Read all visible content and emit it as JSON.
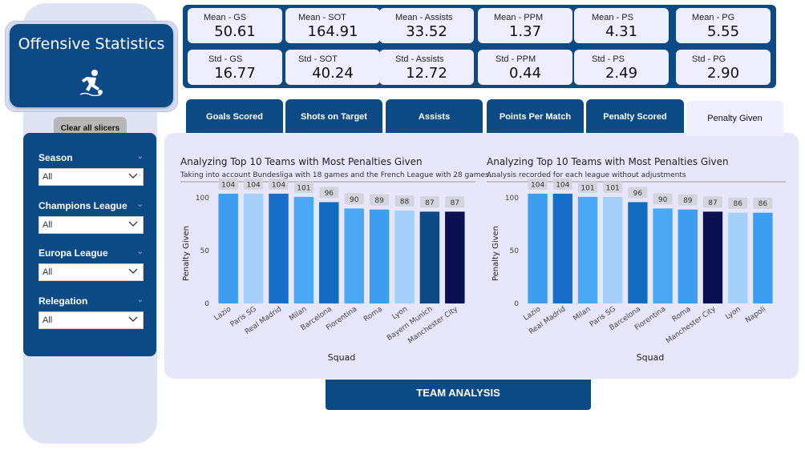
{
  "app": {
    "title": "Offensive Statistics",
    "clear_label": "Clear all slicers",
    "team_analysis_label": "TEAM ANALYSIS"
  },
  "slicers": [
    {
      "label": "Season",
      "value": "All"
    },
    {
      "label": "Champions League",
      "value": "All"
    },
    {
      "label": "Europa League",
      "value": "All"
    },
    {
      "label": "Relegation",
      "value": "All"
    }
  ],
  "kpis": [
    {
      "label": "Mean - GS",
      "value": "50.61"
    },
    {
      "label": "Mean - SOT",
      "value": "164.91"
    },
    {
      "label": "Mean - Assists",
      "value": "33.52"
    },
    {
      "label": "Mean - PPM",
      "value": "1.37"
    },
    {
      "label": "Mean - PS",
      "value": "4.31"
    },
    {
      "label": "Mean - PG",
      "value": "5.55"
    },
    {
      "label": "Std - GS",
      "value": "16.77"
    },
    {
      "label": "Std - SOT",
      "value": "40.24"
    },
    {
      "label": "Std - Assists",
      "value": "12.72"
    },
    {
      "label": "Std - PPM",
      "value": "0.44"
    },
    {
      "label": "Std - PS",
      "value": "2.49"
    },
    {
      "label": "Std - PG",
      "value": "2.90"
    }
  ],
  "tabs": [
    {
      "label": "Goals Scored",
      "active": false
    },
    {
      "label": "Shots on Target",
      "active": false
    },
    {
      "label": "Assists",
      "active": false
    },
    {
      "label": "Points Per Match",
      "active": false
    },
    {
      "label": "Penalty Scored",
      "active": false
    },
    {
      "label": "Penalty Given",
      "active": true
    }
  ],
  "colors": {
    "navy": "#0b4a85",
    "panel": "#e7e7fb"
  },
  "chart_data": [
    {
      "type": "bar",
      "title": "Analyzing Top 10 Teams with Most Penalties Given",
      "subtitle": "Taking into account Bundesliga with 18 games and the French League with 28 games...",
      "xlabel": "Squad",
      "ylabel": "Penalty Given",
      "ylim": [
        0,
        110
      ],
      "yticks": [
        0,
        50,
        100
      ],
      "categories": [
        "Lazio",
        "Paris SG",
        "Real Madrid",
        "Milan",
        "Barcelona",
        "Fiorentina",
        "Roma",
        "Lyon",
        "Bayern Munich",
        "Manchester City"
      ],
      "values": [
        104,
        104,
        104,
        101,
        96,
        90,
        89,
        88,
        87,
        87
      ],
      "colors": [
        "#3d9df0",
        "#a4d0fb",
        "#166ec8",
        "#4ba8f5",
        "#136cc2",
        "#4ba8f5",
        "#3d9df0",
        "#a4d0fb",
        "#0b4a85",
        "#0b1050"
      ]
    },
    {
      "type": "bar",
      "title": "Analyzing Top 10 Teams with Most Penalties Given",
      "subtitle": "Analysis recorded for each league without adjustments",
      "xlabel": "Squad",
      "ylabel": "Penalty Given",
      "ylim": [
        0,
        110
      ],
      "yticks": [
        0,
        50,
        100
      ],
      "categories": [
        "Lazio",
        "Real Madrid",
        "Milan",
        "Paris SG",
        "Barcelona",
        "Fiorentina",
        "Roma",
        "Manchester City",
        "Lyon",
        "Napoli"
      ],
      "values": [
        104,
        104,
        101,
        101,
        96,
        90,
        89,
        87,
        86,
        86
      ],
      "colors": [
        "#3d9df0",
        "#166ec8",
        "#4ba8f5",
        "#a4d0fb",
        "#136cc2",
        "#4ba8f5",
        "#3d9df0",
        "#0b1050",
        "#a4d0fb",
        "#3d9df0"
      ]
    }
  ]
}
